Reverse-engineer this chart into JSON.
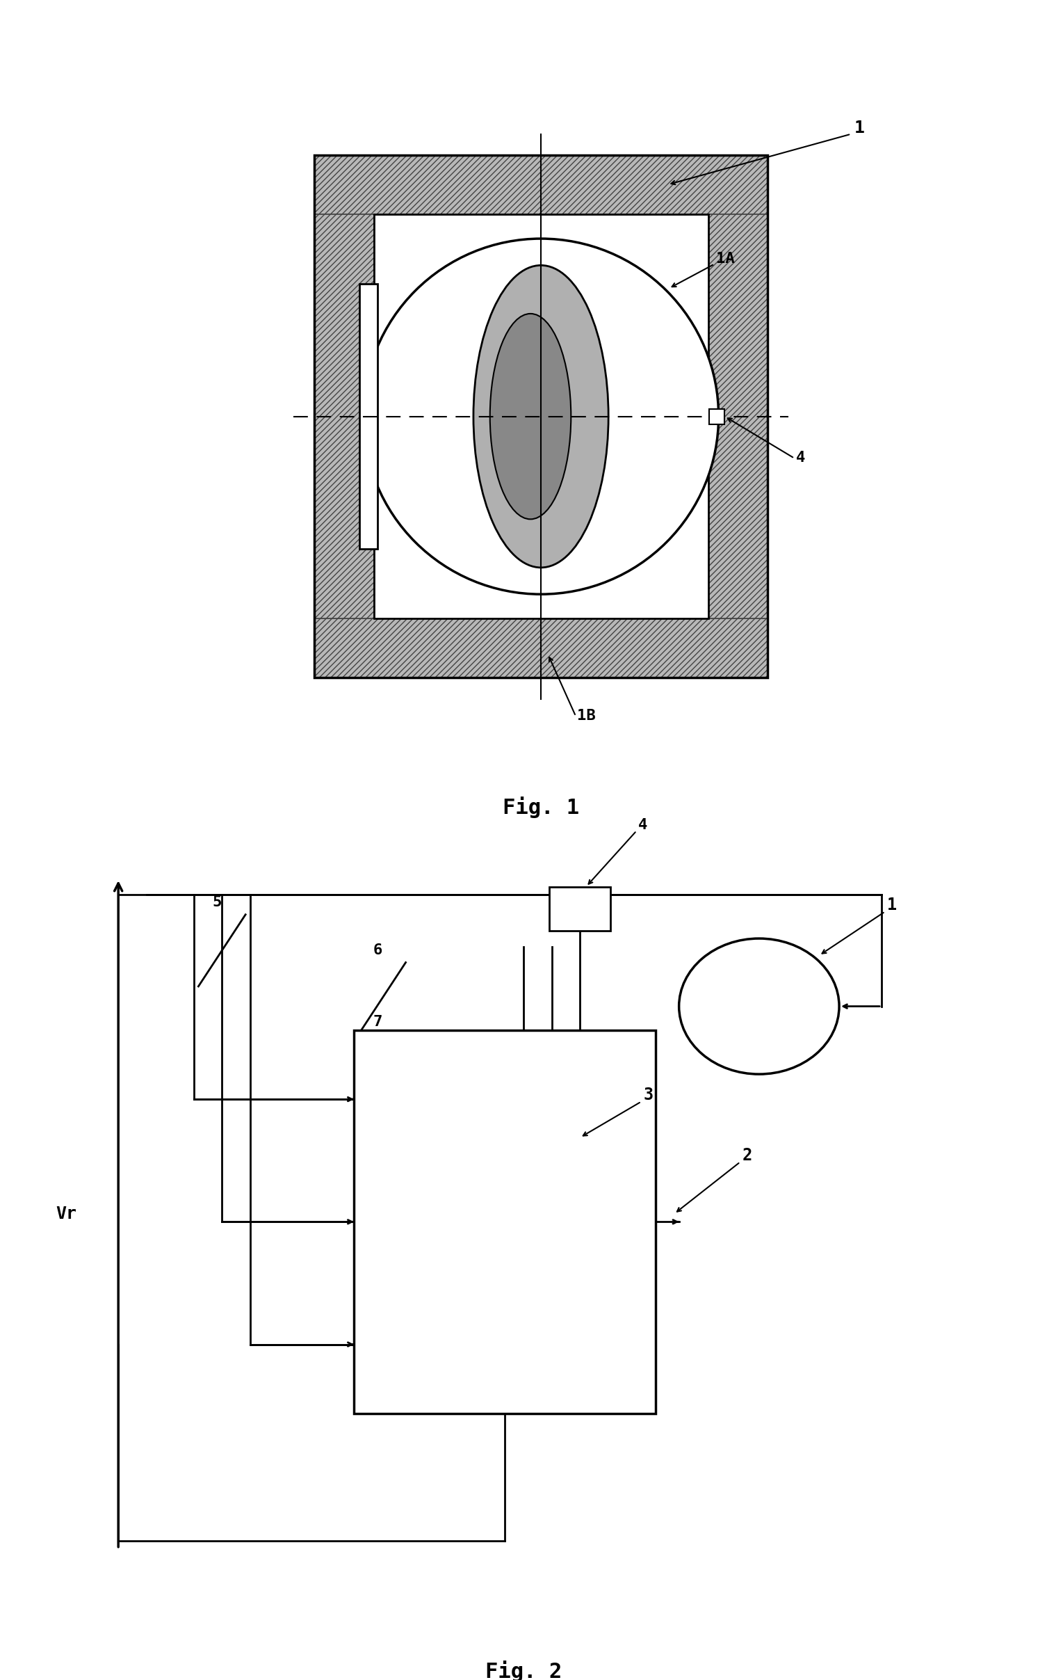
{
  "background": "#ffffff",
  "line_color": "#000000",
  "fig1_title": "Fig. 1",
  "fig2_title": "Fig. 2",
  "title_fontsize": 22,
  "label_fontsize": 16,
  "vr_label": "Vr"
}
